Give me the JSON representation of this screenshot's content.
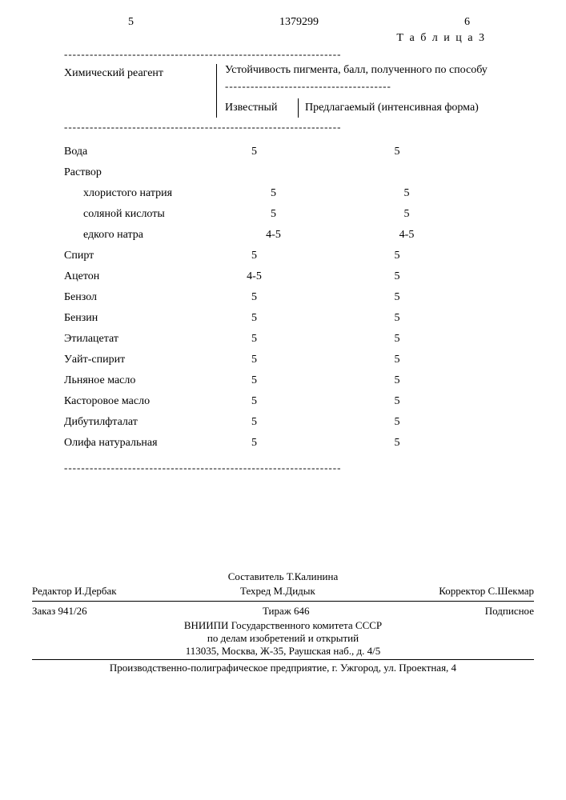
{
  "header": {
    "col5": "5",
    "patent": "1379299",
    "col6": "6",
    "table_label": "Т а б л и ц а  3"
  },
  "table": {
    "col1_header": "Химический реагент",
    "col23_header": "Устойчивость пигмента, балл, полученного по способу",
    "col2_header": "Известный",
    "col3_header": "Предлагаемый (интенсивная форма)",
    "rows": [
      {
        "label": "Вода",
        "indent": false,
        "c2": "5",
        "c3": "5"
      },
      {
        "label": "Раствор",
        "indent": false,
        "c2": "",
        "c3": ""
      },
      {
        "label": "хлористого натрия",
        "indent": true,
        "c2": "5",
        "c3": "5"
      },
      {
        "label": "соляной кислоты",
        "indent": true,
        "c2": "5",
        "c3": "5"
      },
      {
        "label": "едкого натра",
        "indent": true,
        "c2": "4-5",
        "c3": "4-5"
      },
      {
        "label": "Спирт",
        "indent": false,
        "c2": "5",
        "c3": "5"
      },
      {
        "label": "Ацетон",
        "indent": false,
        "c2": "4-5",
        "c3": "5"
      },
      {
        "label": "Бензол",
        "indent": false,
        "c2": "5",
        "c3": "5"
      },
      {
        "label": "Бензин",
        "indent": false,
        "c2": "5",
        "c3": "5"
      },
      {
        "label": "Этилацетат",
        "indent": false,
        "c2": "5",
        "c3": "5"
      },
      {
        "label": "Уайт-спирит",
        "indent": false,
        "c2": "5",
        "c3": "5"
      },
      {
        "label": "Льняное масло",
        "indent": false,
        "c2": "5",
        "c3": "5"
      },
      {
        "label": "Касторовое масло",
        "indent": false,
        "c2": "5",
        "c3": "5"
      },
      {
        "label": "Дибутилфталат",
        "indent": false,
        "c2": "5",
        "c3": "5"
      },
      {
        "label": "Олифа натуральная",
        "indent": false,
        "c2": "5",
        "c3": "5"
      }
    ]
  },
  "footer": {
    "composer": "Составитель Т.Калинина",
    "editor": "Редактор И.Дербак",
    "techred": "Техред М.Дидык",
    "corrector": "Корректор С.Шекмар",
    "order": "Заказ 941/26",
    "tirage": "Тираж 646",
    "subscript": "Подписное",
    "org1": "ВНИИПИ Государственного комитета СССР",
    "org2": "по делам изобретений и открытий",
    "address": "113035, Москва, Ж-35, Раушская наб., д. 4/5",
    "print": "Производственно-полиграфическое предприятие, г. Ужгород, ул. Проектная, 4"
  }
}
